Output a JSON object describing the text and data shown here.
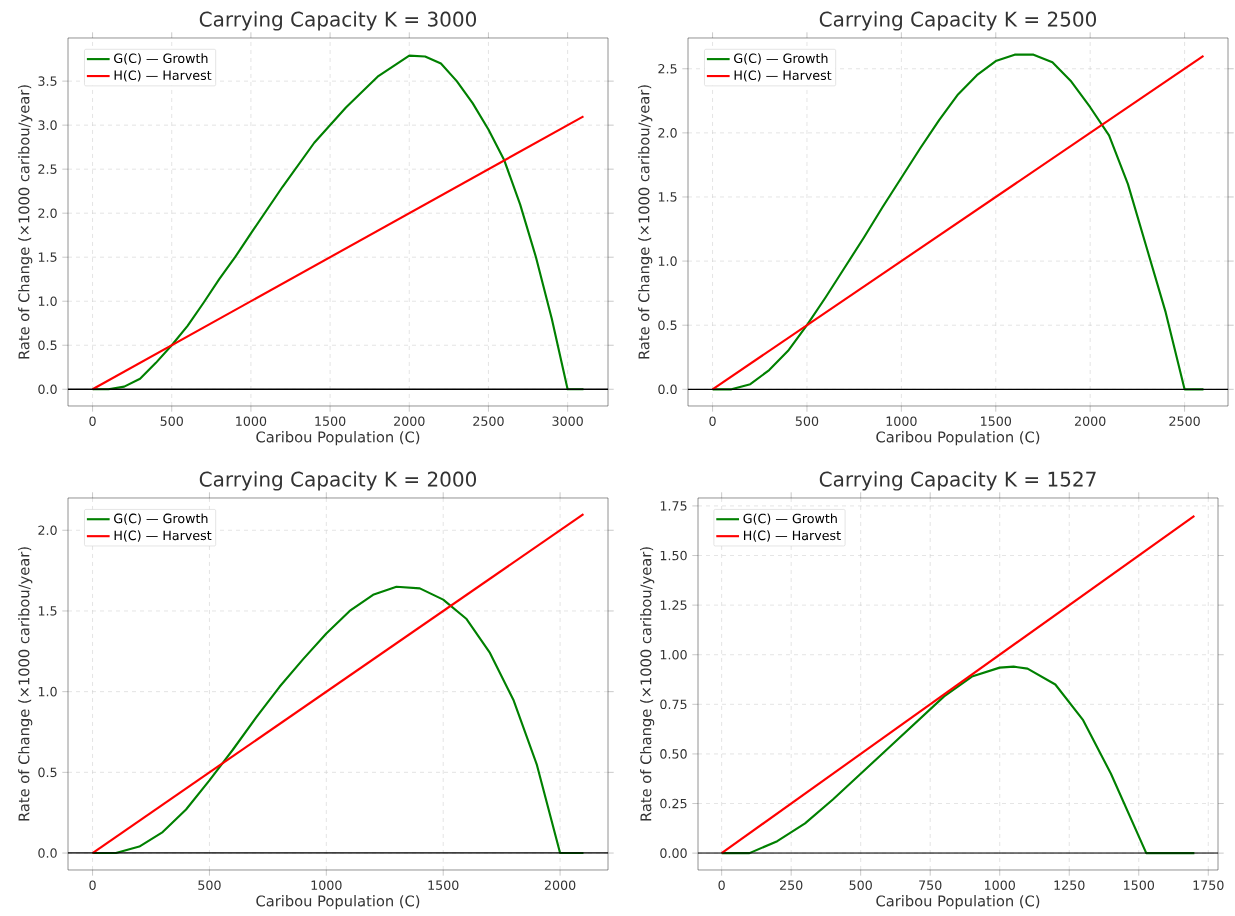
{
  "chart_data": [
    {
      "type": "line",
      "title": "Carrying Capacity K = 3000",
      "xlabel": "Caribou Population (C)",
      "ylabel": "Rate of Change (×1000 caribou/year)",
      "legend": "top left",
      "grid": true,
      "xlim": [
        -155,
        3255
      ],
      "ylim": [
        -0.19,
        3.99
      ],
      "xticks": [
        0,
        500,
        1000,
        1500,
        2000,
        2500,
        3000
      ],
      "yticks": [
        {
          "value": 0,
          "label": "0.0"
        },
        {
          "value": 0.5,
          "label": "0.5"
        },
        {
          "value": 1,
          "label": "1.0"
        },
        {
          "value": 1.5,
          "label": "1.5"
        },
        {
          "value": 2,
          "label": "2.0"
        },
        {
          "value": 2.5,
          "label": "2.5"
        },
        {
          "value": 3,
          "label": "3.0"
        },
        {
          "value": 3.5,
          "label": "3.5"
        }
      ],
      "ref_lines": [
        {
          "axis": "y",
          "value": 0,
          "color": "#000000"
        }
      ],
      "series": [
        {
          "name": "G(C) — Growth",
          "color": "#008000",
          "x": [
            0,
            100,
            200,
            300,
            400,
            500,
            600,
            700,
            800,
            900,
            1000,
            1200,
            1400,
            1600,
            1800,
            2000,
            2100,
            2200,
            2300,
            2400,
            2500,
            2600,
            2700,
            2800,
            2900,
            3000,
            3100
          ],
          "values": [
            0,
            0,
            0.03,
            0.12,
            0.3,
            0.5,
            0.72,
            0.98,
            1.25,
            1.5,
            1.77,
            2.3,
            2.8,
            3.2,
            3.55,
            3.79,
            3.78,
            3.7,
            3.5,
            3.25,
            2.95,
            2.6,
            2.1,
            1.5,
            0.8,
            0,
            0
          ]
        },
        {
          "name": "H(C) — Harvest",
          "color": "#ff0000",
          "x": [
            0,
            3100
          ],
          "values": [
            0,
            3.1
          ]
        }
      ]
    },
    {
      "type": "line",
      "title": "Carrying Capacity K = 2500",
      "xlabel": "Caribou Population (C)",
      "ylabel": "Rate of Change (×1000 caribou/year)",
      "legend": "top left",
      "grid": true,
      "xlim": [
        -130,
        2730
      ],
      "ylim": [
        -0.13,
        2.74
      ],
      "xticks": [
        0,
        500,
        1000,
        1500,
        2000,
        2500
      ],
      "yticks": [
        {
          "value": 0,
          "label": "0.0"
        },
        {
          "value": 0.5,
          "label": "0.5"
        },
        {
          "value": 1,
          "label": "1.0"
        },
        {
          "value": 1.5,
          "label": "1.5"
        },
        {
          "value": 2,
          "label": "2.0"
        },
        {
          "value": 2.5,
          "label": "2.5"
        }
      ],
      "ref_lines": [
        {
          "axis": "y",
          "value": 0,
          "color": "#000000"
        }
      ],
      "series": [
        {
          "name": "G(C) — Growth",
          "color": "#008000",
          "x": [
            0,
            100,
            200,
            300,
            400,
            500,
            600,
            700,
            800,
            900,
            1000,
            1100,
            1200,
            1300,
            1400,
            1500,
            1600,
            1700,
            1800,
            1900,
            2000,
            2100,
            2200,
            2300,
            2400,
            2500,
            2600
          ],
          "values": [
            0,
            0,
            0.04,
            0.15,
            0.3,
            0.5,
            0.72,
            0.95,
            1.18,
            1.42,
            1.65,
            1.88,
            2.1,
            2.3,
            2.45,
            2.56,
            2.61,
            2.61,
            2.55,
            2.4,
            2.2,
            1.98,
            1.6,
            1.1,
            0.6,
            0,
            0
          ]
        },
        {
          "name": "H(C) — Harvest",
          "color": "#ff0000",
          "x": [
            0,
            2600
          ],
          "values": [
            0,
            2.6
          ]
        }
      ]
    },
    {
      "type": "line",
      "title": "Carrying Capacity K = 2000",
      "xlabel": "Caribou Population (C)",
      "ylabel": "Rate of Change (×1000 caribou/year)",
      "legend": "top left",
      "grid": true,
      "xlim": [
        -105,
        2205
      ],
      "ylim": [
        -0.105,
        2.2
      ],
      "xticks": [
        0,
        500,
        1000,
        1500,
        2000
      ],
      "yticks": [
        {
          "value": 0,
          "label": "0.0"
        },
        {
          "value": 0.5,
          "label": "0.5"
        },
        {
          "value": 1,
          "label": "1.0"
        },
        {
          "value": 1.5,
          "label": "1.5"
        },
        {
          "value": 2,
          "label": "2.0"
        }
      ],
      "ref_lines": [
        {
          "axis": "y",
          "value": 0,
          "color": "#000000"
        }
      ],
      "series": [
        {
          "name": "G(C) — Growth",
          "color": "#008000",
          "x": [
            0,
            100,
            200,
            300,
            400,
            500,
            600,
            700,
            800,
            900,
            1000,
            1100,
            1200,
            1300,
            1400,
            1500,
            1600,
            1700,
            1800,
            1900,
            2000,
            2100
          ],
          "values": [
            0,
            0,
            0.04,
            0.13,
            0.27,
            0.45,
            0.64,
            0.84,
            1.03,
            1.2,
            1.36,
            1.5,
            1.6,
            1.65,
            1.64,
            1.57,
            1.45,
            1.24,
            0.95,
            0.55,
            0,
            0
          ]
        },
        {
          "name": "H(C) — Harvest",
          "color": "#ff0000",
          "x": [
            0,
            2100
          ],
          "values": [
            0,
            2.1
          ]
        }
      ]
    },
    {
      "type": "line",
      "title": "Carrying Capacity K = 1527",
      "xlabel": "Caribou Population (C)",
      "ylabel": "Rate of Change (×1000 caribou/year)",
      "legend": "top left",
      "grid": true,
      "xlim": [
        -85,
        1785
      ],
      "ylim": [
        -0.085,
        1.79
      ],
      "xticks": [
        0,
        250,
        500,
        750,
        1000,
        1250,
        1500,
        1750
      ],
      "yticks": [
        {
          "value": 0,
          "label": "0.00"
        },
        {
          "value": 0.25,
          "label": "0.25"
        },
        {
          "value": 0.5,
          "label": "0.50"
        },
        {
          "value": 0.75,
          "label": "0.75"
        },
        {
          "value": 1,
          "label": "1.00"
        },
        {
          "value": 1.25,
          "label": "1.25"
        },
        {
          "value": 1.5,
          "label": "1.50"
        },
        {
          "value": 1.75,
          "label": "1.75"
        }
      ],
      "ref_lines": [
        {
          "axis": "y",
          "value": 0,
          "color": "#000000"
        }
      ],
      "series": [
        {
          "name": "G(C) — Growth",
          "color": "#008000",
          "x": [
            0,
            100,
            200,
            300,
            400,
            500,
            600,
            700,
            800,
            900,
            1000,
            1050,
            1100,
            1200,
            1300,
            1400,
            1527,
            1700
          ],
          "values": [
            0,
            0,
            0.06,
            0.15,
            0.27,
            0.4,
            0.53,
            0.66,
            0.79,
            0.89,
            0.935,
            0.94,
            0.93,
            0.85,
            0.67,
            0.4,
            0,
            0
          ]
        },
        {
          "name": "H(C) — Harvest",
          "color": "#ff0000",
          "x": [
            0,
            1700
          ],
          "values": [
            0,
            1.7
          ]
        }
      ]
    }
  ]
}
